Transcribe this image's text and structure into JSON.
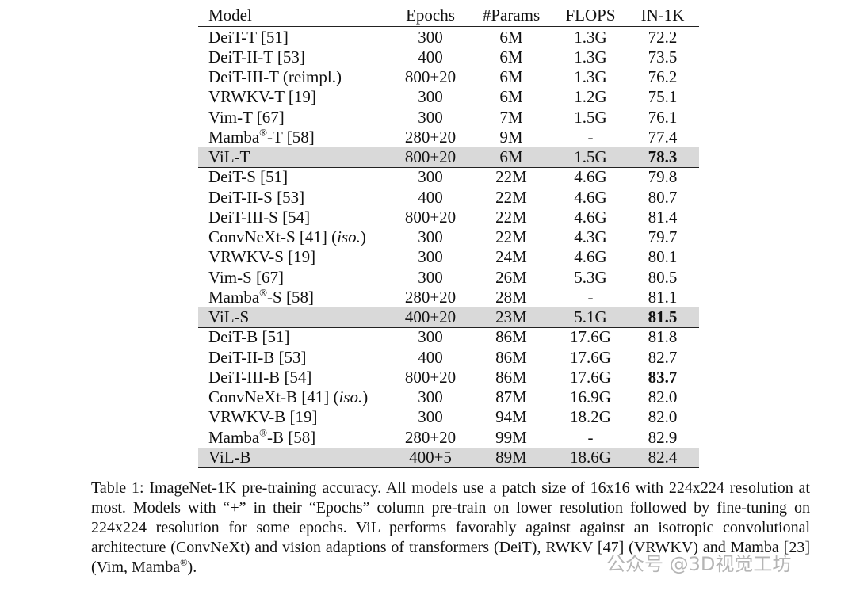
{
  "table": {
    "header": [
      "Model",
      "Epochs",
      "#Params",
      "FLOPS",
      "IN-1K"
    ],
    "groups": [
      {
        "rows": [
          {
            "cells": [
              "DeiT-T [51]",
              "300",
              "6M",
              "1.3G",
              "72.2"
            ]
          },
          {
            "cells": [
              "DeiT-II-T [53]",
              "400",
              "6M",
              "1.3G",
              "73.5"
            ]
          },
          {
            "cells": [
              "DeiT-III-T (reimpl.)",
              "800+20",
              "6M",
              "1.3G",
              "76.2"
            ]
          },
          {
            "cells": [
              "VRWKV-T [19]",
              "300",
              "6M",
              "1.2G",
              "75.1"
            ]
          },
          {
            "cells": [
              "Vim-T [67]",
              "300",
              "7M",
              "1.5G",
              "76.1"
            ]
          },
          {
            "cells": [
              "Mamba®-T [58]",
              "280+20",
              "9M",
              "-",
              "77.4"
            ]
          },
          {
            "cells": [
              "ViL-T",
              "800+20",
              "6M",
              "1.5G",
              "78.3"
            ],
            "highlight": true,
            "bold": [
              4
            ]
          }
        ]
      },
      {
        "rows": [
          {
            "cells": [
              "DeiT-S [51]",
              "300",
              "22M",
              "4.6G",
              "79.8"
            ]
          },
          {
            "cells": [
              "DeiT-II-S [53]",
              "400",
              "22M",
              "4.6G",
              "80.7"
            ]
          },
          {
            "cells": [
              "DeiT-III-S [54]",
              "800+20",
              "22M",
              "4.6G",
              "81.4"
            ]
          },
          {
            "cells": [
              "ConvNeXt-S [41] (iso.)",
              "300",
              "22M",
              "4.3G",
              "79.7"
            ]
          },
          {
            "cells": [
              "VRWKV-S [19]",
              "300",
              "24M",
              "4.6G",
              "80.1"
            ]
          },
          {
            "cells": [
              "Vim-S [67]",
              "300",
              "26M",
              "5.3G",
              "80.5"
            ]
          },
          {
            "cells": [
              "Mamba®-S [58]",
              "280+20",
              "28M",
              "-",
              "81.1"
            ]
          },
          {
            "cells": [
              "ViL-S",
              "400+20",
              "23M",
              "5.1G",
              "81.5"
            ],
            "highlight": true,
            "bold": [
              4
            ]
          }
        ]
      },
      {
        "rows": [
          {
            "cells": [
              "DeiT-B [51]",
              "300",
              "86M",
              "17.6G",
              "81.8"
            ]
          },
          {
            "cells": [
              "DeiT-II-B [53]",
              "400",
              "86M",
              "17.6G",
              "82.7"
            ]
          },
          {
            "cells": [
              "DeiT-III-B [54]",
              "800+20",
              "86M",
              "17.6G",
              "83.7"
            ],
            "bold": [
              4
            ]
          },
          {
            "cells": [
              "ConvNeXt-B [41] (iso.)",
              "300",
              "87M",
              "16.9G",
              "82.0"
            ]
          },
          {
            "cells": [
              "VRWKV-B [19]",
              "300",
              "94M",
              "18.2G",
              "82.0"
            ]
          },
          {
            "cells": [
              "Mamba®-B [58]",
              "280+20",
              "99M",
              "-",
              "82.9"
            ]
          },
          {
            "cells": [
              "ViL-B",
              "400+5",
              "89M",
              "18.6G",
              "82.4"
            ],
            "highlight": true
          }
        ]
      }
    ]
  },
  "caption": "Table 1: ImageNet-1K pre-training accuracy. All models use a patch size of 16x16 with 224x224 resolution at most. Models with “+” in their “Epochs” column pre-train on lower resolution followed by fine-tuning on 224x224 resolution for some epochs. ViL performs favorably against against an isotropic convolutional architecture (ConvNeXt) and vision adaptions of transformers (DeiT), RWKV [47] (VRWKV) and Mamba [23] (Vim, Mamba®).",
  "watermark": "公众号 @3D视觉工坊"
}
